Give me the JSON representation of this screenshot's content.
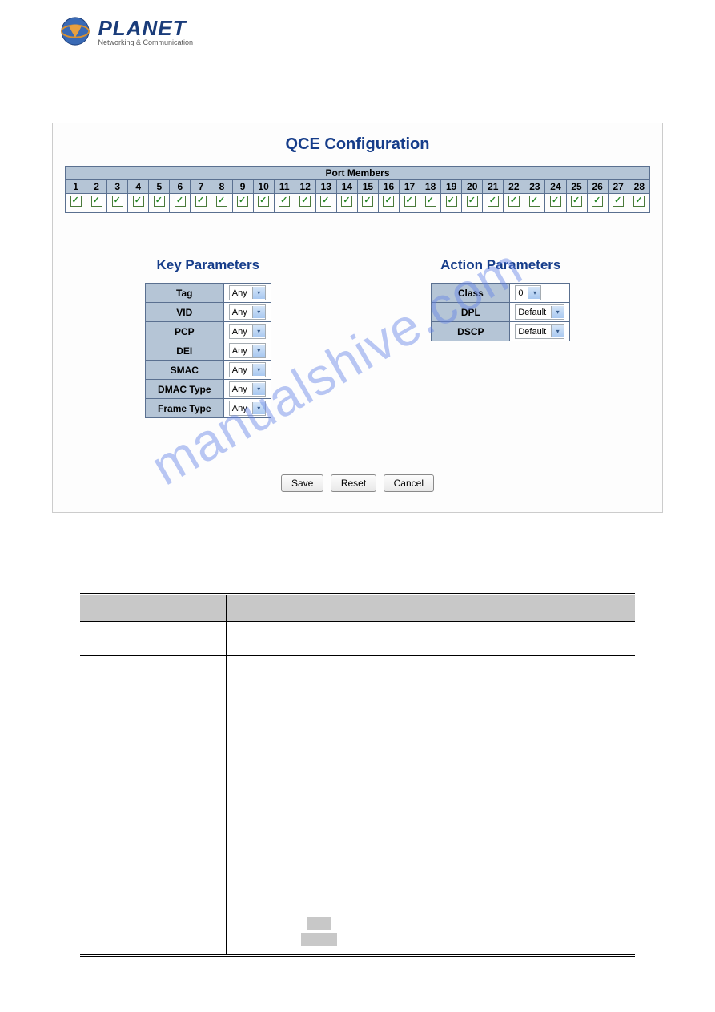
{
  "logo": {
    "name": "PLANET",
    "tagline": "Networking & Communication"
  },
  "panel": {
    "title": "QCE Configuration",
    "port_members_header": "Port Members",
    "ports": [
      1,
      2,
      3,
      4,
      5,
      6,
      7,
      8,
      9,
      10,
      11,
      12,
      13,
      14,
      15,
      16,
      17,
      18,
      19,
      20,
      21,
      22,
      23,
      24,
      25,
      26,
      27,
      28
    ],
    "key_params": {
      "title": "Key Parameters",
      "rows": [
        {
          "label": "Tag",
          "value": "Any"
        },
        {
          "label": "VID",
          "value": "Any"
        },
        {
          "label": "PCP",
          "value": "Any"
        },
        {
          "label": "DEI",
          "value": "Any"
        },
        {
          "label": "SMAC",
          "value": "Any"
        },
        {
          "label": "DMAC Type",
          "value": "Any"
        },
        {
          "label": "Frame Type",
          "value": "Any"
        }
      ]
    },
    "action_params": {
      "title": "Action Parameters",
      "rows": [
        {
          "label": "Class",
          "value": "0"
        },
        {
          "label": "DPL",
          "value": "Default"
        },
        {
          "label": "DSCP",
          "value": "Default"
        }
      ]
    },
    "buttons": {
      "save": "Save",
      "reset": "Reset",
      "cancel": "Cancel"
    }
  },
  "colors": {
    "header_bg": "#b5c5d6",
    "border": "#5a7090",
    "title_color": "#163d8a",
    "check_color": "#2a8a2a",
    "gray_block": "#c8c8c8"
  },
  "watermark": "manualshive.com"
}
